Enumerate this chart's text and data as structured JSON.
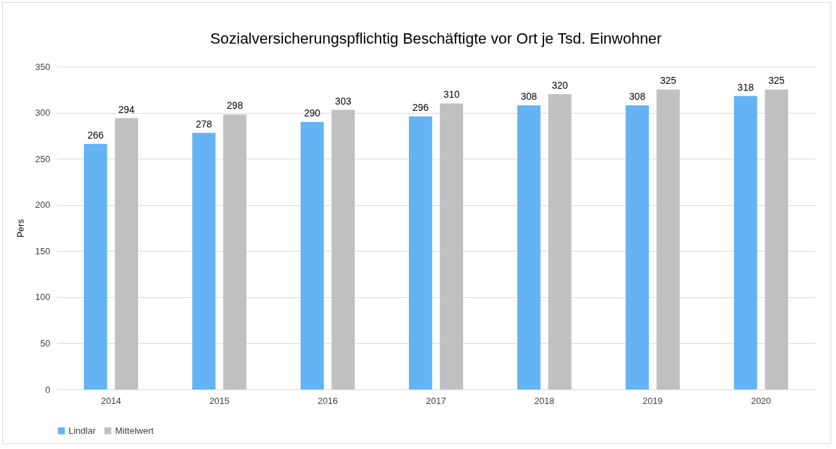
{
  "chart_data": {
    "type": "bar",
    "title": "Sozialversicherungspflichtig Beschäftigte vor Ort je Tsd. Einwohner",
    "ylabel": "Pers",
    "categories": [
      "2014",
      "2015",
      "2016",
      "2017",
      "2018",
      "2019",
      "2020"
    ],
    "series": [
      {
        "name": "Lindlar",
        "color": "#63b3f5",
        "values": [
          266,
          278,
          290,
          296,
          308,
          308,
          318
        ]
      },
      {
        "name": "Mittelwert",
        "color": "#c0c0c0",
        "values": [
          294,
          298,
          303,
          310,
          320,
          325,
          325
        ]
      }
    ],
    "ylim": [
      0,
      350
    ],
    "yticks": [
      0,
      50,
      100,
      150,
      200,
      250,
      300,
      350
    ],
    "grid": "y",
    "legend": "bottom",
    "data_labels": true
  }
}
